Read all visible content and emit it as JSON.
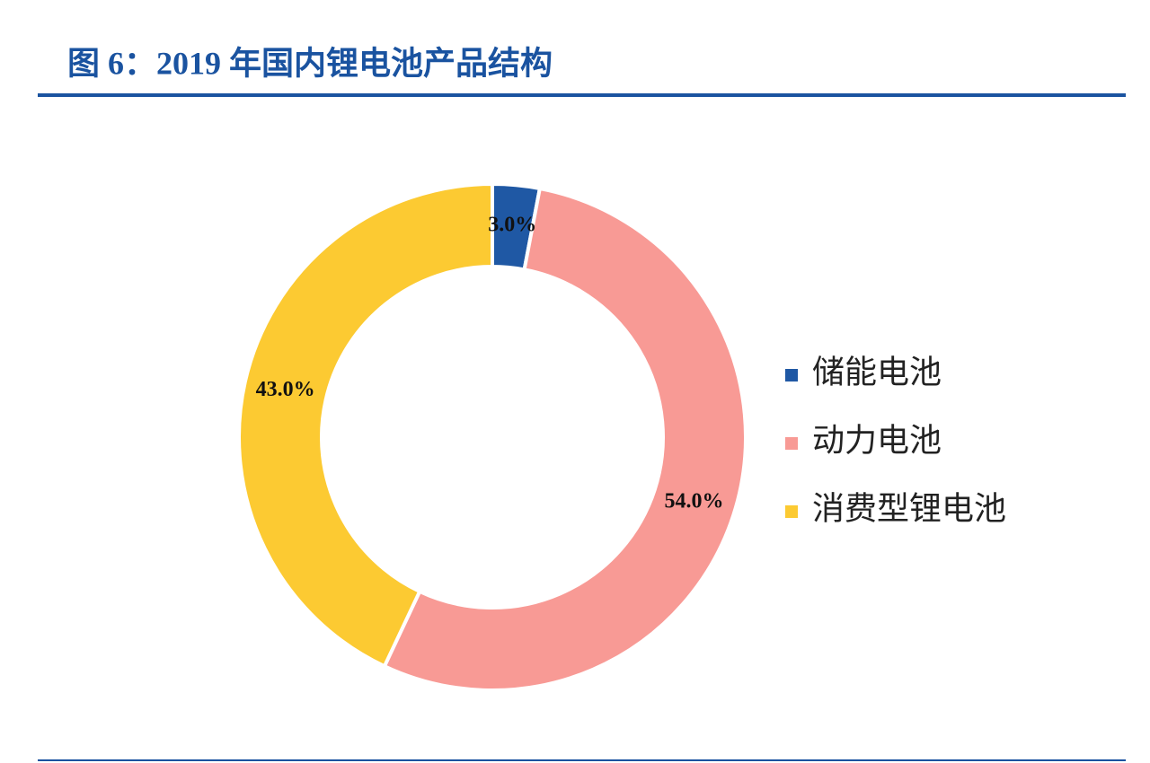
{
  "chart_data": {
    "type": "donut",
    "title": "图 6：2019 年国内锂电池产品结构",
    "categories": [
      "储能电池",
      "动力电池",
      "消费型锂电池"
    ],
    "values": [
      3,
      54,
      43
    ],
    "value_labels": [
      "3.0%",
      "54.0%",
      "43.0%"
    ],
    "colors": [
      "#1f58a4",
      "#f89a95",
      "#fcca32"
    ],
    "legend": "right"
  }
}
